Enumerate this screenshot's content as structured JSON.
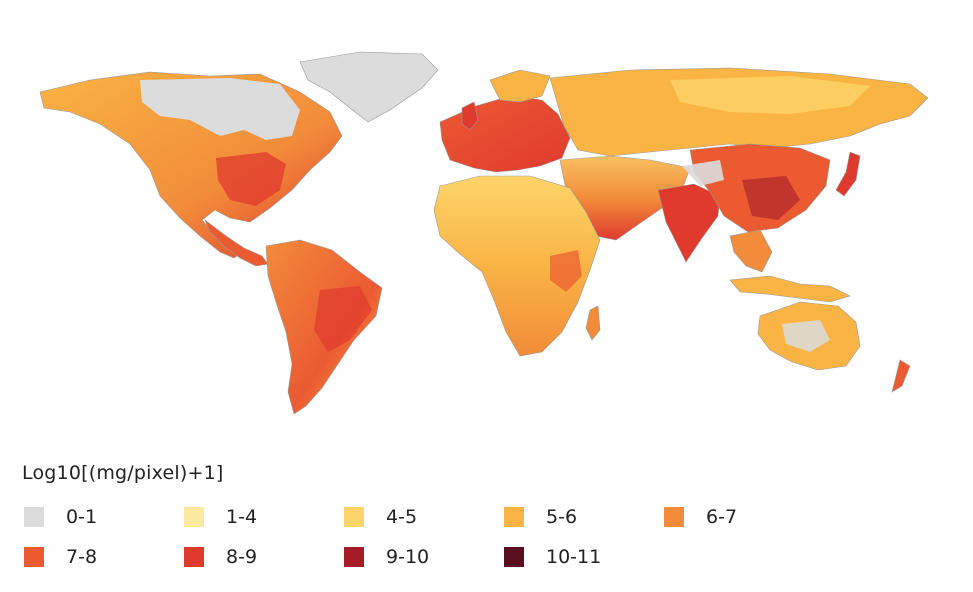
{
  "legend": {
    "title": "Log10[(mg/pixel)+1]",
    "items": [
      {
        "label": "0-1",
        "color": "#dcdcdc"
      },
      {
        "label": "1-4",
        "color": "#fde8a0"
      },
      {
        "label": "4-5",
        "color": "#fcd46a"
      },
      {
        "label": "5-6",
        "color": "#f9b444"
      },
      {
        "label": "6-7",
        "color": "#f28c3a"
      },
      {
        "label": "7-8",
        "color": "#ec5a32"
      },
      {
        "label": "8-9",
        "color": "#e03a2e"
      },
      {
        "label": "9-10",
        "color": "#a51c28"
      },
      {
        "label": "10-11",
        "color": "#5a0f20"
      }
    ]
  }
}
